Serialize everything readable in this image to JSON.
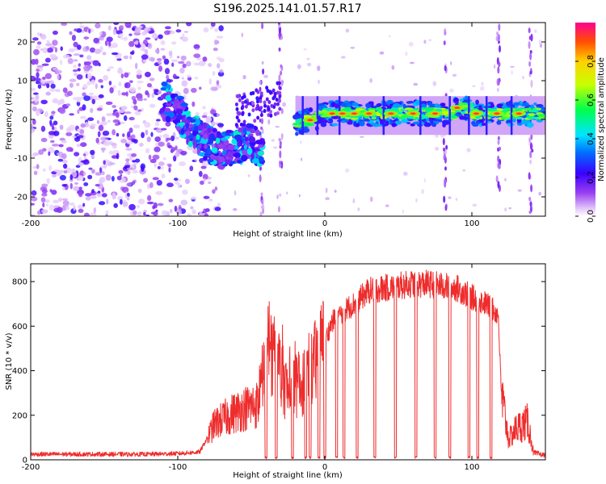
{
  "title": "S196.2025.141.01.57.R17",
  "colorbar": {
    "label": "Normalized spectral amplitude",
    "ticks": [
      "0.0",
      "0.2",
      "0.4",
      "0.6",
      "0.8"
    ],
    "tick_values": [
      0.0,
      0.2,
      0.4,
      0.6,
      0.8
    ],
    "range": [
      0.0,
      1.0
    ],
    "colormap": "rainbow (violet-blue-cyan-green-yellow-orange-red)"
  },
  "chart_data": [
    {
      "type": "heatmap",
      "name": "spectrogram",
      "xlabel": "Height of straight line (km)",
      "ylabel": "Frequency (Hz)",
      "xlim": [
        -200,
        150
      ],
      "ylim": [
        -25,
        25
      ],
      "x_ticks": [
        -200,
        -100,
        0,
        100
      ],
      "y_ticks": [
        -20,
        -10,
        0,
        10,
        20
      ],
      "x_tick_labels": [
        "-200",
        "-100",
        "0",
        "100"
      ],
      "y_tick_labels": [
        "-20",
        "-10",
        "0",
        "10",
        "20"
      ],
      "features": {
        "noise_region_x": [
          -200,
          -95
        ],
        "descending_track": {
          "x": [
            -110,
            -100,
            -90,
            -80,
            -70,
            -60,
            -50,
            -42
          ],
          "y": [
            5,
            2,
            -3,
            -6,
            -8,
            -7,
            -6,
            -8
          ]
        },
        "signal_band": {
          "x_start": -20,
          "x_end": 150,
          "y": [
            0.5,
            2.5
          ]
        },
        "hot_spots_x": [
          -10,
          5,
          12,
          20,
          30,
          45,
          60,
          75,
          90,
          103,
          117,
          132
        ]
      }
    },
    {
      "type": "line",
      "name": "snr",
      "xlabel": "Height of straight line (km)",
      "ylabel": "SNR (10 * v/v)",
      "xlim": [
        -200,
        150
      ],
      "ylim": [
        0,
        880
      ],
      "x_ticks": [
        -200,
        -100,
        0,
        100
      ],
      "y_ticks": [
        0,
        200,
        400,
        600,
        800
      ],
      "x_tick_labels": [
        "-200",
        "-100",
        "0",
        "100"
      ],
      "y_tick_labels": [
        "0",
        "200",
        "400",
        "600",
        "800"
      ],
      "color": "#ee2c2c",
      "envelope": {
        "x": [
          -200,
          -120,
          -100,
          -85,
          -75,
          -65,
          -55,
          -45,
          -38,
          -30,
          -25,
          -15,
          -5,
          5,
          15,
          20,
          30,
          40,
          50,
          60,
          70,
          80,
          90,
          100,
          110,
          118,
          120,
          125,
          130,
          138,
          142,
          150
        ],
        "y": [
          25,
          25,
          28,
          35,
          160,
          200,
          230,
          250,
          500,
          380,
          300,
          350,
          450,
          620,
          680,
          700,
          760,
          770,
          780,
          790,
          790,
          780,
          770,
          730,
          700,
          650,
          300,
          90,
          140,
          170,
          30,
          20
        ]
      },
      "dropouts_x": [
        -40,
        -33,
        -22,
        -13,
        -10,
        -4,
        0,
        8,
        13,
        22,
        34,
        48,
        62,
        75,
        85,
        98,
        104,
        113
      ]
    }
  ]
}
